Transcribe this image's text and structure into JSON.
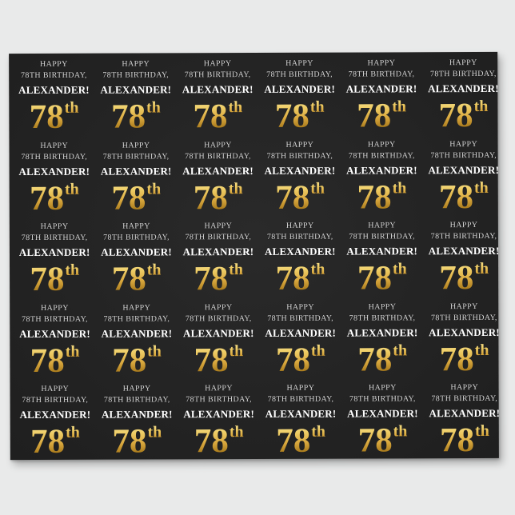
{
  "colors": {
    "page_bg": "#E9EAEA",
    "paper_bg": "#232323",
    "greeting_text": "#D6D6D6",
    "name_text": "#FFFFFF",
    "gold_top": "#F6E49A",
    "gold_hi": "#EFCE67",
    "gold_mid": "#D9A83E",
    "gold_low": "#A87A1C",
    "gold_dark": "#7E5A10"
  },
  "pattern": {
    "rows": 5,
    "columns": 6,
    "tile": {
      "greeting_line1": "HAPPY",
      "greeting_line2": "78TH BIRTHDAY,",
      "name_line": "ALEXANDER!",
      "number": "78",
      "ordinal_suffix": "th"
    }
  }
}
